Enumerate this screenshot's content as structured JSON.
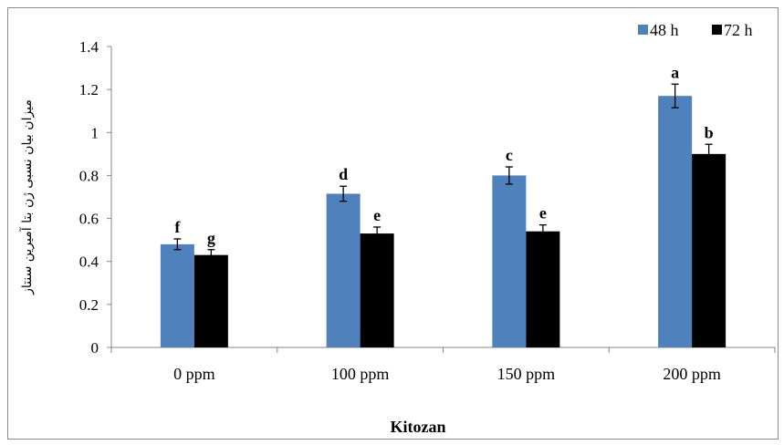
{
  "chart_data": {
    "type": "bar",
    "title": "",
    "xlabel": "Kitozan",
    "ylabel": "میزان بیان نسبی ژن بتا آمیرین سنتاز",
    "categories": [
      "0 ppm",
      "100 ppm",
      "150 ppm",
      "200 ppm"
    ],
    "ylim": [
      0,
      1.4
    ],
    "yticks": [
      "0",
      "0.2",
      "0.4",
      "0.6",
      "0.8",
      "1",
      "1.2",
      "1.4"
    ],
    "grid": false,
    "legend_position": "top-right",
    "series": [
      {
        "name": "48 h",
        "color": "#4f81bd",
        "values": [
          0.48,
          0.715,
          0.8,
          1.17
        ],
        "errors": [
          0.025,
          0.035,
          0.04,
          0.055
        ],
        "letters": [
          "f",
          "d",
          "c",
          "a"
        ]
      },
      {
        "name": "72 h",
        "color": "#000000",
        "values": [
          0.43,
          0.53,
          0.54,
          0.9
        ],
        "errors": [
          0.025,
          0.03,
          0.03,
          0.045
        ],
        "letters": [
          "g",
          "e",
          "e",
          "b"
        ]
      }
    ]
  }
}
